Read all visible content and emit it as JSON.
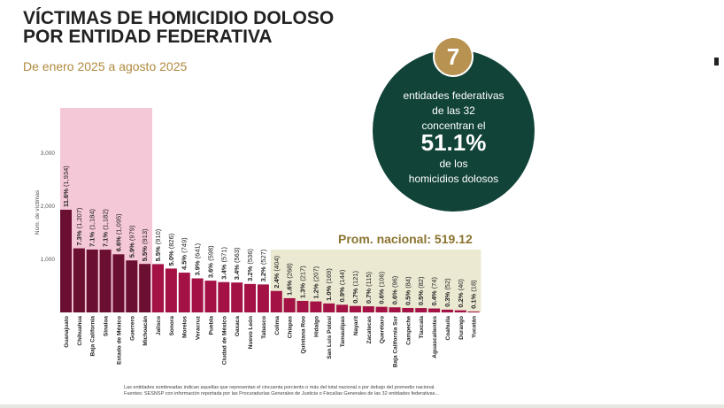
{
  "header": {
    "title_line1": "VÍCTIMAS DE HOMICIDIO DOLOSO",
    "title_line2": "POR ENTIDAD FEDERATIVA",
    "subtitle": "De enero 2025 a agosto 2025"
  },
  "callout": {
    "number": "7",
    "line1": "entidades federativas",
    "line2": "de las 32",
    "line3": "concentran el",
    "percent": "51.1%",
    "line4": "de los",
    "line5": "homicidios dolosos"
  },
  "promedio_label": "Prom. nacional: 519.12",
  "footnote": {
    "line1": "Las entidades sombreadas indican aquellas que representan el cincuenta porciento o más del total nacional o por debajo del promedio nacional.",
    "line2": "Fuentes: SESNSP con información reportada por las Procuradurías Generales de Justicia o Fiscalías Generales de las 32 entidades federativas..."
  },
  "colors": {
    "dark_bar": "#6b0f32",
    "bar": "#a31145",
    "highlight_top": "#f5c8d8",
    "highlight_low": "#ece9d3",
    "circle": "#114339",
    "badge": "#b89250",
    "gold_text": "#8b7430"
  },
  "chart_data": {
    "type": "bar",
    "ylabel": "Núm. de víctimas",
    "ylim": [
      0,
      3500
    ],
    "yticks": [
      1000,
      2000,
      3000
    ],
    "ytick_labels": [
      "1,000",
      "2,000",
      "3,000"
    ],
    "average": 519.12,
    "categories": [
      "Guanajuato",
      "Chihuahua",
      "Baja California",
      "Sinaloa",
      "Estado de México",
      "Guerrero",
      "Michoacán",
      "Jalisco",
      "Sonora",
      "Morelos",
      "Veracruz",
      "Puebla",
      "Ciudad de México",
      "Oaxaca",
      "Nuevo León",
      "Tabasco",
      "Colima",
      "Chiapas",
      "Quintana Roo",
      "Hidalgo",
      "San Luis Potosí",
      "Tamaulipas",
      "Nayarit",
      "Zacatecas",
      "Querétaro",
      "Baja California Sur",
      "Campeche",
      "Tlaxcala",
      "Aguascalientes",
      "Coahuila",
      "Durango",
      "Yucatán"
    ],
    "values": [
      1934,
      1207,
      1184,
      1182,
      1095,
      979,
      913,
      910,
      826,
      749,
      641,
      598,
      571,
      563,
      536,
      527,
      404,
      268,
      217,
      207,
      169,
      144,
      121,
      115,
      106,
      96,
      84,
      82,
      74,
      52,
      40,
      18
    ],
    "pct_labels": [
      "11.6%",
      "7.3%",
      "7.1%",
      "7.1%",
      "6.6%",
      "5.9%",
      "5.5%",
      "5.5%",
      "5.0%",
      "4.5%",
      "3.9%",
      "3.6%",
      "3.4%",
      "3.4%",
      "3.2%",
      "3.2%",
      "2.4%",
      "1.6%",
      "1.3%",
      "1.2%",
      "1.0%",
      "0.9%",
      "0.7%",
      "0.7%",
      "0.6%",
      "0.6%",
      "0.5%",
      "0.5%",
      "0.4%",
      "0.3%",
      "0.2%",
      "0.1%"
    ],
    "count_labels": [
      "(1,934)",
      "(1,207)",
      "(1,184)",
      "(1,182)",
      "(1,095)",
      "(979)",
      "(913)",
      "(910)",
      "(826)",
      "(749)",
      "(641)",
      "(598)",
      "(571)",
      "(563)",
      "(536)",
      "(527)",
      "(404)",
      "(268)",
      "(217)",
      "(207)",
      "(169)",
      "(144)",
      "(121)",
      "(115)",
      "(106)",
      "(96)",
      "(84)",
      "(82)",
      "(74)",
      "(52)",
      "(40)",
      "(18)"
    ],
    "top_group_count": 7,
    "grid": false
  }
}
